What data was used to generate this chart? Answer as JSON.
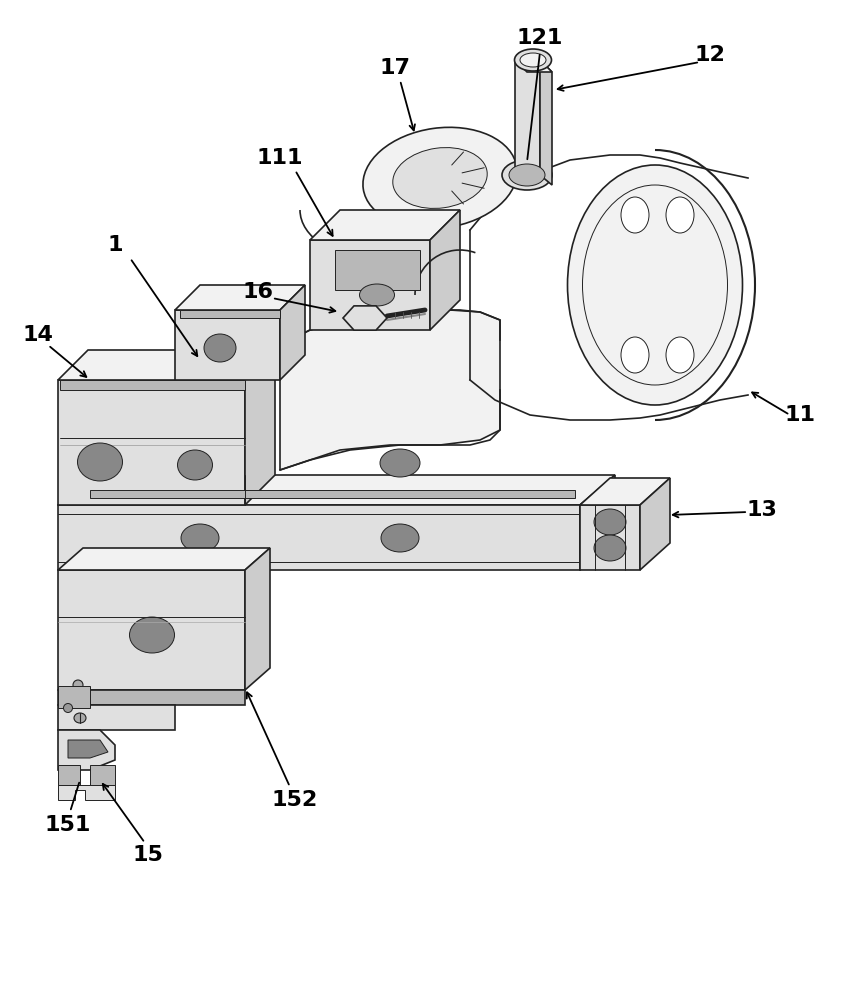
{
  "background_color": "#ffffff",
  "line_color": "#222222",
  "lw": 1.2,
  "tlw": 0.7,
  "fig_width": 8.45,
  "fig_height": 10.0,
  "annotation_fontsize": 16,
  "annotation_fontweight": "bold",
  "fill_light": "#f2f2f2",
  "fill_mid": "#e0e0e0",
  "fill_dark": "#cccccc",
  "fill_darker": "#b8b8b8",
  "fill_slot": "#a0a0a0",
  "fill_hole": "#888888"
}
